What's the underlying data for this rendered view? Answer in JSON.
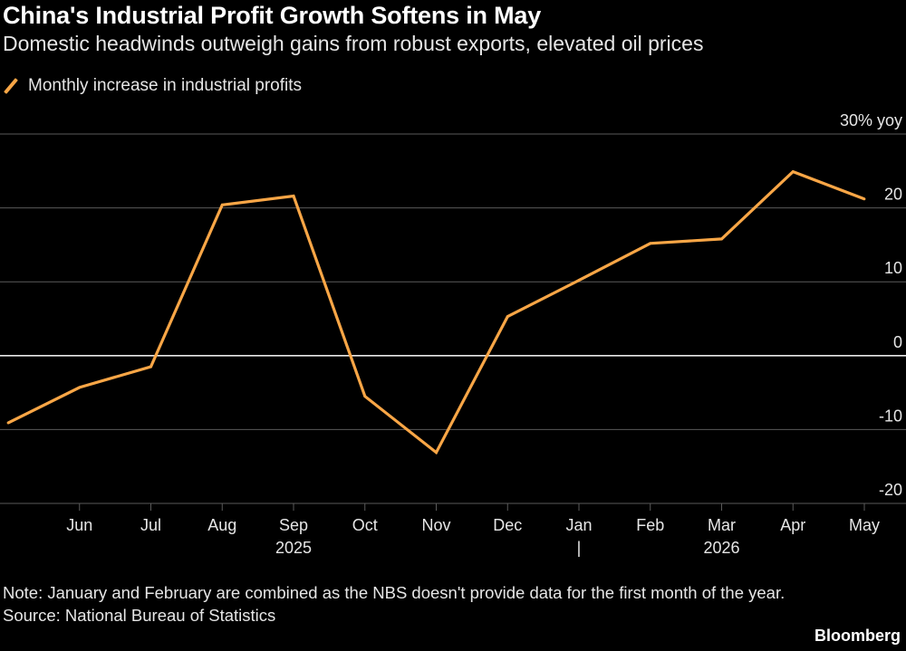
{
  "header": {
    "title": "China's Industrial Profit Growth Softens in May",
    "subtitle": "Domestic headwinds outweigh gains from robust exports, elevated oil prices"
  },
  "footer": {
    "note": "Note: January and February are combined as the NBS doesn't provide data for the first month of the year.",
    "source": "Source: National Bureau of Statistics",
    "brand": "Bloomberg"
  },
  "colors": {
    "line": "#f9a646",
    "grid": "#5a5a5a",
    "zero_line": "#e8e8e8",
    "text": "#e6e6e6",
    "background": "#000000"
  },
  "chart_data": {
    "type": "line",
    "title": "China's Industrial Profit Growth Softens in May",
    "subtitle": "Domestic headwinds outweigh gains from robust exports, elevated oil prices",
    "x": [
      "May 2025",
      "Jun 2025",
      "Jul 2025",
      "Aug 2025",
      "Sep 2025",
      "Oct 2025",
      "Nov 2025",
      "Dec 2025",
      "Jan 2026",
      "Feb 2026",
      "Mar 2026",
      "Apr 2026",
      "May 2026"
    ],
    "x_tick_labels": [
      "",
      "Jun",
      "Jul",
      "Aug",
      "Sep",
      "Oct",
      "Nov",
      "Dec",
      "Jan",
      "Feb",
      "Mar",
      "Apr",
      "May"
    ],
    "year_labels": [
      {
        "label": "2025",
        "at": "Sep 2025"
      },
      {
        "label": "2026",
        "at": "Mar 2026"
      }
    ],
    "year_divider_at": "Jan 2026",
    "year_divider_label": "|",
    "series": [
      {
        "name": "Monthly increase in industrial profits",
        "values": [
          -9.1,
          -4.3,
          -1.5,
          20.4,
          21.6,
          -5.5,
          -13.1,
          5.3,
          10.2,
          15.2,
          15.8,
          24.9,
          21.2
        ]
      }
    ],
    "ylim": [
      -20,
      30
    ],
    "yticks": [
      -20,
      -10,
      0,
      10,
      20,
      30
    ],
    "ytick_labels": [
      "-20",
      "-10",
      "0",
      "10",
      "20",
      "30% yoy"
    ],
    "xlabel": "",
    "ylabel": "",
    "grid": true,
    "legend": "top-left"
  }
}
